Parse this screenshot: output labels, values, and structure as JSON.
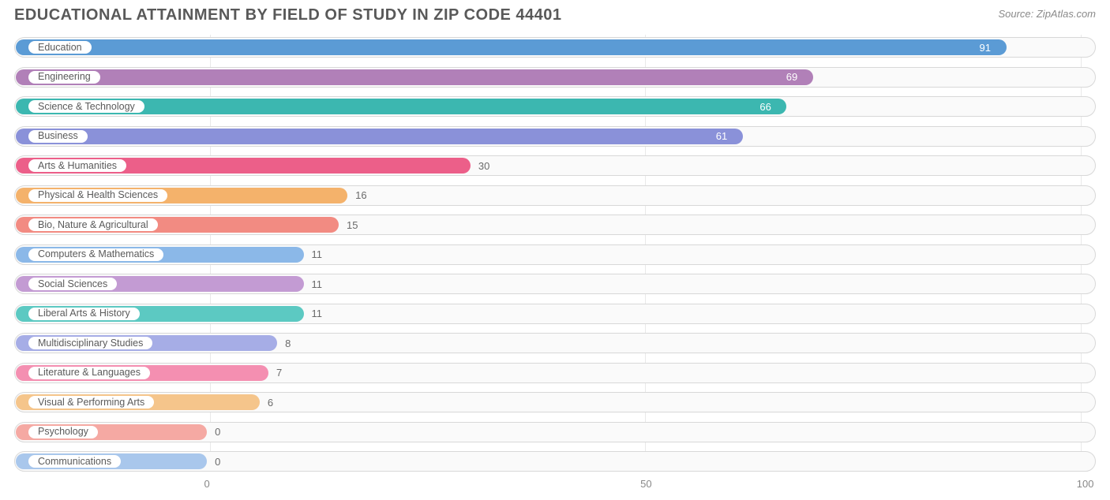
{
  "title": "EDUCATIONAL ATTAINMENT BY FIELD OF STUDY IN ZIP CODE 44401",
  "source": "Source: ZipAtlas.com",
  "chart": {
    "type": "bar-horizontal",
    "xmax": 100,
    "background": "#ffffff",
    "track_border": "#d8d8d8",
    "track_fill": "#fafafa",
    "title_color": "#595959",
    "source_color": "#8a8a8a",
    "axis_color": "#888888",
    "title_fontsize": 20,
    "label_fontsize": 12.5,
    "value_fontsize": 13,
    "bar_min_pct": 17.5,
    "bar_origin_pct": 0.6,
    "xticks": [
      0,
      50,
      100
    ],
    "pill_bg": "#ffffff",
    "pill_text": "#5a5a5a",
    "rows": [
      {
        "label": "Education",
        "value": 91,
        "color": "#5b9bd5",
        "value_inside": true,
        "value_text_color": "#ffffff"
      },
      {
        "label": "Engineering",
        "value": 69,
        "color": "#b180b8",
        "value_inside": true,
        "value_text_color": "#ffffff"
      },
      {
        "label": "Science & Technology",
        "value": 66,
        "color": "#3cb7b0",
        "value_inside": true,
        "value_text_color": "#ffffff"
      },
      {
        "label": "Business",
        "value": 61,
        "color": "#8a91d9",
        "value_inside": true,
        "value_text_color": "#ffffff"
      },
      {
        "label": "Arts & Humanities",
        "value": 30,
        "color": "#ec5f89",
        "value_inside": false,
        "value_text_color": "#6a6a6a"
      },
      {
        "label": "Physical & Health Sciences",
        "value": 16,
        "color": "#f4b26b",
        "value_inside": false,
        "value_text_color": "#6a6a6a"
      },
      {
        "label": "Bio, Nature & Agricultural",
        "value": 15,
        "color": "#f28b82",
        "value_inside": false,
        "value_text_color": "#6a6a6a"
      },
      {
        "label": "Computers & Mathematics",
        "value": 11,
        "color": "#8bb8e8",
        "value_inside": false,
        "value_text_color": "#6a6a6a"
      },
      {
        "label": "Social Sciences",
        "value": 11,
        "color": "#c39bd3",
        "value_inside": false,
        "value_text_color": "#6a6a6a"
      },
      {
        "label": "Liberal Arts & History",
        "value": 11,
        "color": "#5cc9c2",
        "value_inside": false,
        "value_text_color": "#6a6a6a"
      },
      {
        "label": "Multidisciplinary Studies",
        "value": 8,
        "color": "#a6ade6",
        "value_inside": false,
        "value_text_color": "#6a6a6a"
      },
      {
        "label": "Literature & Languages",
        "value": 7,
        "color": "#f48fb1",
        "value_inside": false,
        "value_text_color": "#6a6a6a"
      },
      {
        "label": "Visual & Performing Arts",
        "value": 6,
        "color": "#f5c58b",
        "value_inside": false,
        "value_text_color": "#6a6a6a"
      },
      {
        "label": "Psychology",
        "value": 0,
        "color": "#f5a9a3",
        "value_inside": false,
        "value_text_color": "#6a6a6a"
      },
      {
        "label": "Communications",
        "value": 0,
        "color": "#a9c7ec",
        "value_inside": false,
        "value_text_color": "#6a6a6a"
      }
    ]
  }
}
